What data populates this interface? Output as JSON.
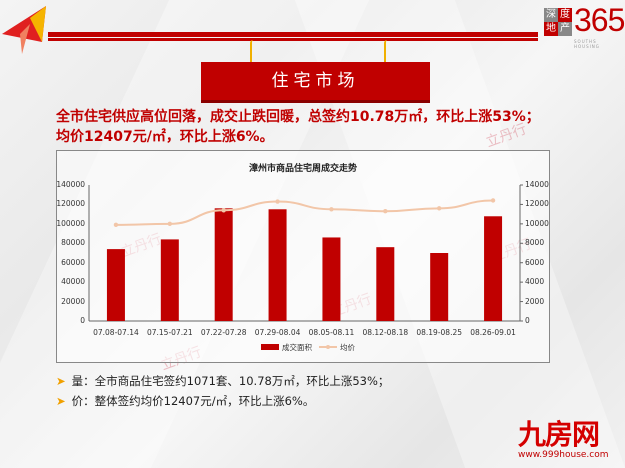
{
  "header": {
    "logo_chars": [
      "深",
      "度",
      "地",
      "产"
    ],
    "logo_number": "365",
    "logo_sub": "SOUTHS HOUSING",
    "section_title": "住宅市场"
  },
  "headline": "全市住宅供应高位回落，成交止跌回暖，总签约10.78万㎡，环比上涨53%；均价12407元/㎡，环比上涨6%。",
  "chart_data": {
    "type": "bar",
    "title": "漳州市商品住宅周成交走势",
    "categories": [
      "07.08-07.14",
      "07.15-07.21",
      "07.22-07.28",
      "07.29-08.04",
      "08.05-08.11",
      "08.12-08.18",
      "08.19-08.25",
      "08.26-09.01"
    ],
    "series": [
      {
        "name": "成交面积",
        "type": "bar",
        "axis": "left",
        "color": "#c00000",
        "values": [
          74000,
          84000,
          116000,
          115000,
          86000,
          76000,
          70000,
          107800
        ]
      },
      {
        "name": "均价",
        "type": "line",
        "axis": "right",
        "color": "#f2c6a8",
        "values": [
          9900,
          10000,
          11400,
          12300,
          11500,
          11300,
          11600,
          12407
        ]
      }
    ],
    "y_left": {
      "ticks": [
        "0",
        "20000",
        "40000",
        "60000",
        "80000",
        "100000",
        "120000",
        "140000"
      ],
      "ylim": [
        0,
        140000
      ]
    },
    "y_right": {
      "ticks": [
        "0",
        "2000",
        "4000",
        "6000",
        "8000",
        "10000",
        "12000",
        "14000"
      ],
      "ylim": [
        0,
        14000
      ]
    },
    "xlabel": "",
    "ylabel": "",
    "legend": {
      "position": "bottom",
      "entries": [
        "成交面积",
        "均价"
      ]
    },
    "grid": false
  },
  "bullets": [
    "量：全市商品住宅签约1071套、10.78万㎡，环比上涨53%；",
    "价：整体签约均价12407元/㎡，环比上涨6%。"
  ],
  "watermark": "立丹行",
  "footer_logo": {
    "main": "九房网",
    "url": "www.999house.com"
  }
}
